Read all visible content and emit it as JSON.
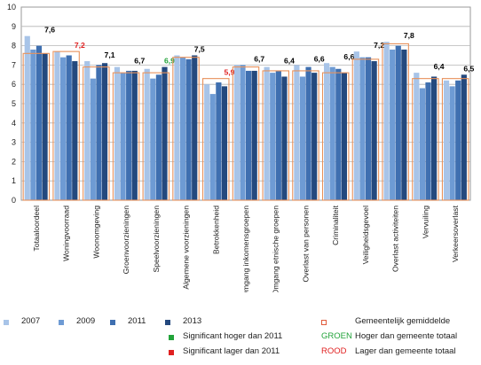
{
  "chart_data": {
    "type": "bar",
    "ylim": [
      0,
      10
    ],
    "yticks": [
      "0",
      "1",
      "2",
      "3",
      "4",
      "5",
      "6",
      "7",
      "8",
      "9",
      "10"
    ],
    "grid": true,
    "legend_position": "bottom",
    "categories": [
      "Totaaloordeel",
      "Woningvoorraad",
      "Woonomgeving",
      "Groenvoorzieningen",
      "Speelvoorzieningen",
      "Algemene voorzieningen",
      "Betrokkenheid",
      "Omgang inkomensgroepen",
      "Omgang etnische groepen",
      "Overlast van personen",
      "Criminaliteit",
      "Veiligheidsgevoel",
      "Overlast activiteiten",
      "Vervuiling",
      "Verkeersoverlast"
    ],
    "series": [
      {
        "name": "2007",
        "color": "#a8c4e8",
        "values": [
          8.5,
          7.7,
          7.2,
          6.9,
          6.8,
          7.5,
          6.0,
          7.0,
          6.9,
          7.0,
          7.1,
          7.7,
          8.2,
          6.6,
          6.2
        ]
      },
      {
        "name": "2009",
        "color": "#6e9bd4",
        "values": [
          7.8,
          7.4,
          6.3,
          6.6,
          6.3,
          7.4,
          5.5,
          7.0,
          6.6,
          6.4,
          6.9,
          7.4,
          7.8,
          5.8,
          5.9
        ]
      },
      {
        "name": "2011",
        "color": "#3f6fb0",
        "values": [
          8.0,
          7.5,
          7.0,
          6.7,
          6.5,
          7.3,
          6.1,
          6.7,
          6.7,
          6.9,
          6.8,
          7.4,
          8.0,
          6.1,
          6.2
        ]
      },
      {
        "name": "2013",
        "color": "#24497e",
        "values": [
          7.6,
          7.2,
          7.1,
          6.7,
          6.9,
          7.5,
          5.9,
          6.7,
          6.4,
          6.6,
          6.6,
          7.2,
          7.8,
          6.4,
          6.5
        ]
      }
    ],
    "municipal_average": [
      7.6,
      7.7,
      6.9,
      6.6,
      6.6,
      7.4,
      6.3,
      6.9,
      6.7,
      6.7,
      6.6,
      7.3,
      8.1,
      6.3,
      6.3
    ],
    "value_labels": [
      "7,6",
      "7,2",
      "7,1",
      "6,7",
      "6,9",
      "7,5",
      "5,9",
      "6,7",
      "6,4",
      "6,6",
      "6,6",
      "7,2",
      "7,8",
      "6,4",
      "6,5"
    ],
    "label_colors": [
      "#000000",
      "#e02020",
      "#000000",
      "#000000",
      "#22a33a",
      "#000000",
      "#e02020",
      "#000000",
      "#000000",
      "#000000",
      "#000000",
      "#000000",
      "#000000",
      "#000000",
      "#000000"
    ]
  },
  "legend": {
    "years": [
      {
        "label": "2007",
        "color": "#a8c4e8"
      },
      {
        "label": "2009",
        "color": "#6e9bd4"
      },
      {
        "label": "2011",
        "color": "#3f6fb0"
      },
      {
        "label": "2013",
        "color": "#24497e"
      }
    ],
    "sig_higher": {
      "label": "Significant hoger dan 2011",
      "color": "#22a33a"
    },
    "sig_lower": {
      "label": "Significant lager dan 2011",
      "color": "#e02020"
    },
    "avg": {
      "label": "Gemeentelijk gemiddelde",
      "color": "#e05a3a"
    },
    "groen": {
      "word": "GROEN",
      "text": "Hoger dan gemeente totaal",
      "color": "#22a33a"
    },
    "rood": {
      "word": "ROOD",
      "text": "Lager dan gemeente totaal",
      "color": "#e02020"
    }
  }
}
